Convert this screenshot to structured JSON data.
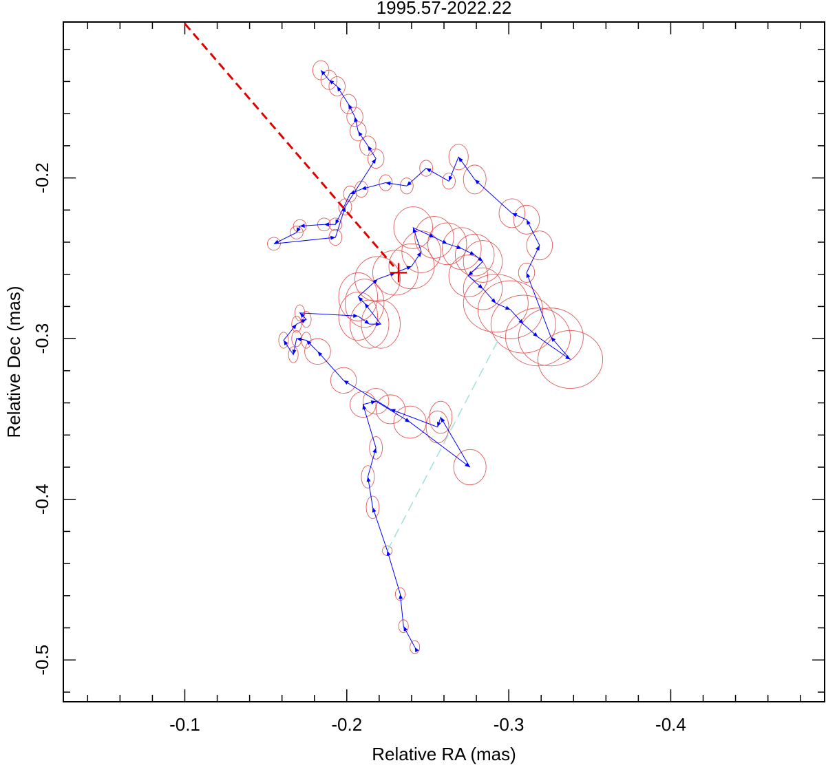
{
  "chart_data": {
    "type": "trajectory",
    "title": "1995.57-2022.22",
    "x_label": "Relative RA (mas)",
    "y_label": "Relative Dec (mas)",
    "xlim": [
      -0.025,
      -0.495
    ],
    "ylim": [
      -0.526,
      -0.103
    ],
    "xticks": [
      -0.1,
      -0.2,
      -0.3,
      -0.4
    ],
    "yticks": [
      -0.2,
      -0.3,
      -0.4,
      -0.5
    ],
    "xminorticks": [
      -0.04,
      -0.06,
      -0.08,
      -0.12,
      -0.14,
      -0.16,
      -0.18,
      -0.22,
      -0.24,
      -0.26,
      -0.28,
      -0.32,
      -0.34,
      -0.36,
      -0.38,
      -0.42,
      -0.44,
      -0.46,
      -0.48
    ],
    "yminorticks": [
      -0.12,
      -0.14,
      -0.16,
      -0.18,
      -0.22,
      -0.24,
      -0.26,
      -0.28,
      -0.32,
      -0.34,
      -0.36,
      -0.38,
      -0.42,
      -0.44,
      -0.46,
      -0.48,
      -0.52
    ],
    "line_color": "#0000ff",
    "ellipse_color": "#e05a5a",
    "x": [
      -0.242,
      -0.235,
      -0.233,
      -0.225,
      -0.216,
      -0.213,
      -0.218,
      -0.21,
      -0.218,
      -0.239,
      -0.276,
      -0.258,
      -0.256,
      -0.227,
      -0.198,
      -0.182,
      -0.175,
      -0.169,
      -0.167,
      -0.161,
      -0.169,
      -0.175,
      -0.171,
      -0.207,
      -0.214,
      -0.221,
      -0.211,
      -0.207,
      -0.219,
      -0.23,
      -0.24,
      -0.246,
      -0.241,
      -0.254,
      -0.262,
      -0.271,
      -0.279,
      -0.284,
      -0.275,
      -0.284,
      -0.292,
      -0.301,
      -0.309,
      -0.318,
      -0.338,
      -0.326,
      -0.311,
      -0.319,
      -0.311,
      -0.302,
      -0.279,
      -0.269,
      -0.263,
      -0.249,
      -0.237,
      -0.224,
      -0.209,
      -0.202,
      -0.193,
      -0.186,
      -0.171,
      -0.169,
      -0.155,
      -0.193,
      -0.199,
      -0.218,
      -0.213,
      -0.207,
      -0.205,
      -0.201,
      -0.194,
      -0.189,
      -0.184
    ],
    "y": [
      -0.492,
      -0.479,
      -0.459,
      -0.432,
      -0.405,
      -0.386,
      -0.368,
      -0.341,
      -0.339,
      -0.352,
      -0.38,
      -0.349,
      -0.355,
      -0.344,
      -0.326,
      -0.308,
      -0.301,
      -0.3,
      -0.31,
      -0.301,
      -0.291,
      -0.288,
      -0.284,
      -0.286,
      -0.291,
      -0.291,
      -0.278,
      -0.274,
      -0.263,
      -0.259,
      -0.255,
      -0.246,
      -0.231,
      -0.237,
      -0.241,
      -0.244,
      -0.248,
      -0.252,
      -0.261,
      -0.269,
      -0.278,
      -0.282,
      -0.291,
      -0.299,
      -0.313,
      -0.299,
      -0.259,
      -0.242,
      -0.226,
      -0.222,
      -0.201,
      -0.187,
      -0.202,
      -0.194,
      -0.205,
      -0.203,
      -0.207,
      -0.21,
      -0.229,
      -0.229,
      -0.23,
      -0.234,
      -0.241,
      -0.237,
      -0.218,
      -0.188,
      -0.18,
      -0.171,
      -0.162,
      -0.154,
      -0.143,
      -0.139,
      -0.133
    ],
    "ex": [
      0.003,
      0.003,
      0.003,
      0.003,
      0.004,
      0.004,
      0.004,
      0.008,
      0.008,
      0.01,
      0.01,
      0.007,
      0.007,
      0.009,
      0.008,
      0.008,
      0.003,
      0.003,
      0.003,
      0.003,
      0.003,
      0.003,
      0.003,
      0.012,
      0.012,
      0.012,
      0.012,
      0.012,
      0.014,
      0.014,
      0.014,
      0.012,
      0.012,
      0.012,
      0.012,
      0.012,
      0.012,
      0.012,
      0.012,
      0.012,
      0.02,
      0.02,
      0.02,
      0.02,
      0.02,
      0.02,
      0.005,
      0.008,
      0.008,
      0.008,
      0.007,
      0.006,
      0.004,
      0.004,
      0.004,
      0.004,
      0.004,
      0.004,
      0.004,
      0.004,
      0.004,
      0.004,
      0.004,
      0.004,
      0.004,
      0.005,
      0.005,
      0.005,
      0.005,
      0.005,
      0.005,
      0.005,
      0.005
    ],
    "ey": [
      0.004,
      0.004,
      0.004,
      0.003,
      0.007,
      0.007,
      0.007,
      0.008,
      0.008,
      0.01,
      0.011,
      0.01,
      0.01,
      0.009,
      0.008,
      0.008,
      0.005,
      0.005,
      0.005,
      0.005,
      0.005,
      0.005,
      0.005,
      0.015,
      0.015,
      0.015,
      0.015,
      0.015,
      0.014,
      0.014,
      0.014,
      0.013,
      0.013,
      0.013,
      0.013,
      0.013,
      0.013,
      0.013,
      0.013,
      0.013,
      0.018,
      0.018,
      0.018,
      0.018,
      0.018,
      0.018,
      0.006,
      0.009,
      0.009,
      0.009,
      0.009,
      0.008,
      0.005,
      0.005,
      0.005,
      0.005,
      0.005,
      0.005,
      0.004,
      0.004,
      0.004,
      0.004,
      0.004,
      0.005,
      0.005,
      0.006,
      0.006,
      0.006,
      0.006,
      0.006,
      0.006,
      0.006,
      0.006
    ],
    "reference_line": {
      "color": "#e00000",
      "x": [
        -0.1,
        -0.229
      ],
      "y": [
        -0.104,
        -0.255
      ]
    },
    "reference_point": {
      "color": "#e00000",
      "x": -0.232,
      "y": -0.259
    },
    "gap_line": {
      "color": "#9fe0dc",
      "x": [
        -0.225,
        -0.295
      ],
      "y": [
        -0.432,
        -0.298
      ]
    }
  }
}
